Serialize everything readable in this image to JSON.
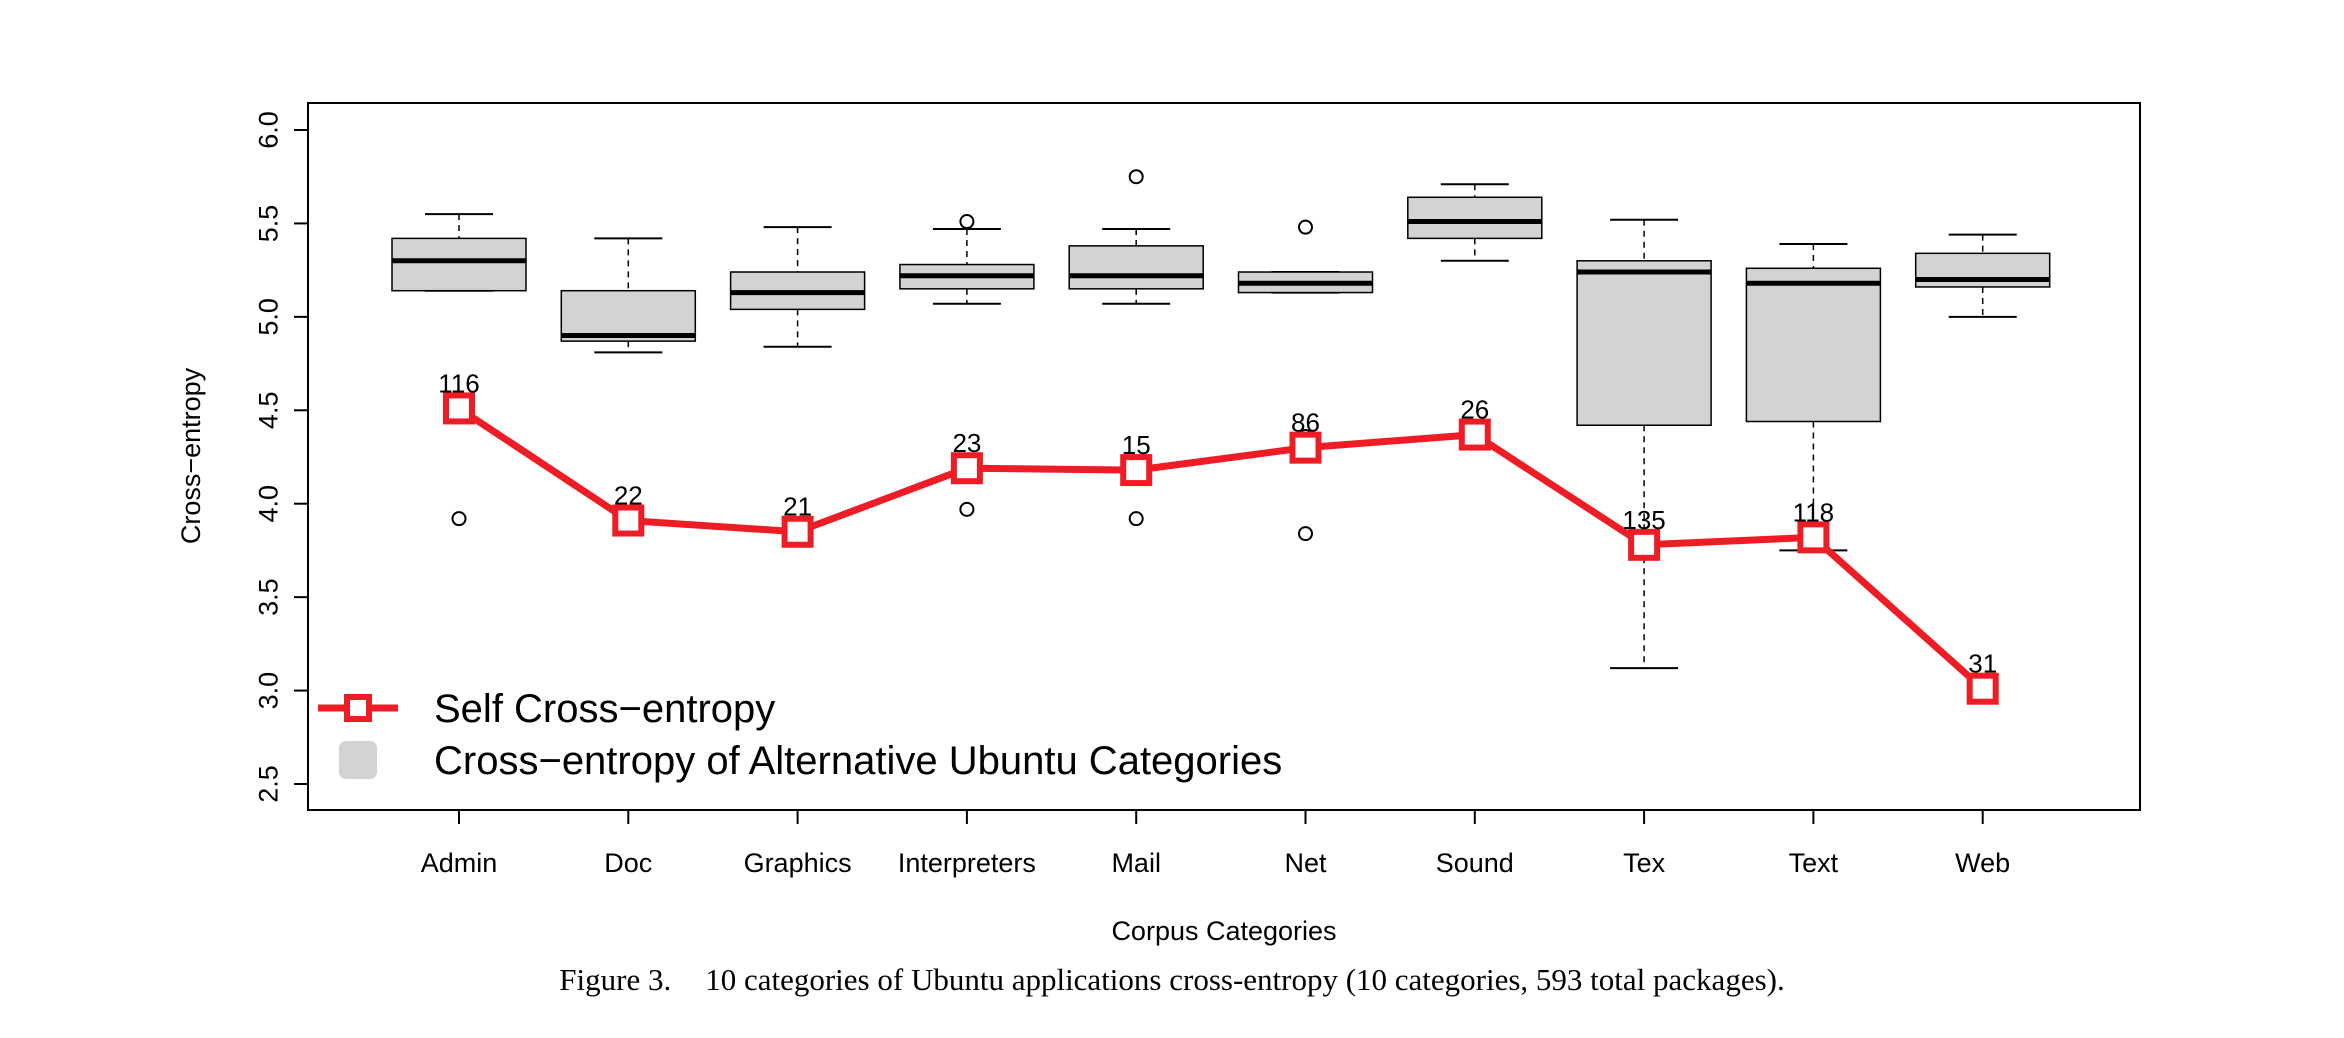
{
  "caption": {
    "figure_label": "Figure 3.",
    "text": "10 categories of Ubuntu applications cross-entropy (10 categories, 593 total packages)."
  },
  "colors": {
    "self": "#ee1c25",
    "box_fill": "#d3d3d3",
    "axis": "#000000"
  },
  "chart_data": {
    "type": "boxplot+line",
    "xlabel": "Corpus Categories",
    "ylabel": "Cross−entropy",
    "ylim": [
      2.5,
      6.0
    ],
    "yticks": [
      "2.5",
      "3.0",
      "3.5",
      "4.0",
      "4.5",
      "5.0",
      "5.5",
      "6.0"
    ],
    "grid": false,
    "legend_position": "bottom-left",
    "categories": [
      "Admin",
      "Doc",
      "Graphics",
      "Interpreters",
      "Mail",
      "Net",
      "Sound",
      "Tex",
      "Text",
      "Web"
    ],
    "series": [
      {
        "name": "Self Cross−entropy",
        "type": "line",
        "values": [
          4.51,
          3.91,
          3.85,
          4.19,
          4.18,
          4.3,
          4.37,
          3.78,
          3.82,
          3.01
        ],
        "labels": [
          "116",
          "22",
          "21",
          "23",
          "15",
          "86",
          "26",
          "135",
          "118",
          "31"
        ]
      },
      {
        "name": "Cross−entropy of Alternative Ubuntu Categories",
        "type": "box",
        "boxes": [
          {
            "min": 5.14,
            "q1": 5.14,
            "median": 5.3,
            "q3": 5.42,
            "max": 5.55,
            "outliers": [
              4.48,
              3.92
            ]
          },
          {
            "min": 4.81,
            "q1": 4.87,
            "median": 4.9,
            "q3": 5.14,
            "max": 5.42,
            "outliers": []
          },
          {
            "min": 4.84,
            "q1": 5.04,
            "median": 5.13,
            "q3": 5.24,
            "max": 5.48,
            "outliers": [
              3.81
            ]
          },
          {
            "min": 5.07,
            "q1": 5.15,
            "median": 5.22,
            "q3": 5.28,
            "max": 5.47,
            "outliers": [
              5.51,
              3.97
            ]
          },
          {
            "min": 5.07,
            "q1": 5.15,
            "median": 5.22,
            "q3": 5.38,
            "max": 5.47,
            "outliers": [
              5.75,
              3.92
            ]
          },
          {
            "min": 5.13,
            "q1": 5.13,
            "median": 5.18,
            "q3": 5.24,
            "max": 5.24,
            "outliers": [
              5.48,
              4.36,
              3.84
            ]
          },
          {
            "min": 5.3,
            "q1": 5.42,
            "median": 5.51,
            "q3": 5.64,
            "max": 5.71,
            "outliers": [
              4.33
            ]
          },
          {
            "min": 3.12,
            "q1": 4.42,
            "median": 5.24,
            "q3": 5.3,
            "max": 5.52,
            "outliers": []
          },
          {
            "min": 3.75,
            "q1": 4.44,
            "median": 5.18,
            "q3": 5.26,
            "max": 5.39,
            "outliers": []
          },
          {
            "min": 5.0,
            "q1": 5.16,
            "median": 5.2,
            "q3": 5.34,
            "max": 5.44,
            "outliers": []
          }
        ]
      }
    ]
  }
}
